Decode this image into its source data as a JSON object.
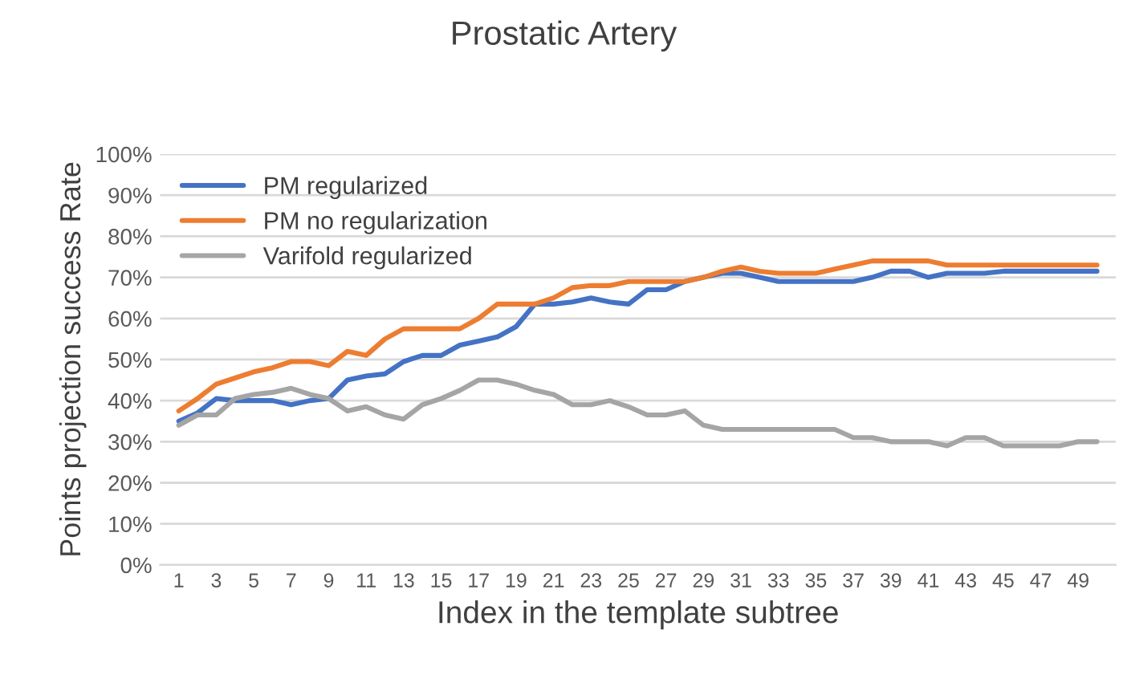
{
  "chart_data": {
    "type": "line",
    "title": "Prostatic Artery",
    "xlabel": "Index in the template subtree",
    "ylabel": "Points projection success Rate",
    "categories": [
      "1",
      null,
      "3",
      null,
      "5",
      null,
      "7",
      null,
      "9",
      null,
      "11",
      null,
      "13",
      null,
      "15",
      null,
      "17",
      null,
      "19",
      null,
      "21",
      null,
      "23",
      null,
      "25",
      null,
      "27",
      null,
      "29",
      null,
      "31",
      null,
      "33",
      null,
      "35",
      null,
      "37",
      null,
      "39",
      null,
      "41",
      null,
      "43",
      null,
      "45",
      null,
      "47",
      null,
      "49",
      null
    ],
    "series": [
      {
        "name": "PM regularized",
        "color": "#4472c4",
        "values": [
          35,
          37,
          40.5,
          40,
          40,
          40,
          39,
          40,
          40.5,
          45,
          46,
          46.5,
          49.5,
          51,
          51,
          53.5,
          54.5,
          55.5,
          58,
          63.5,
          63.5,
          64,
          65,
          64,
          63.5,
          67,
          67,
          69,
          70,
          71,
          71,
          70,
          69,
          69,
          69,
          69,
          69,
          70,
          71.5,
          71.5,
          70,
          71,
          71,
          71,
          71.5,
          71.5,
          71.5,
          71.5,
          71.5,
          71.5
        ]
      },
      {
        "name": "PM no regularization",
        "color": "#ed7d31",
        "values": [
          37.5,
          40.5,
          44,
          45.5,
          47,
          48,
          49.5,
          49.5,
          48.5,
          52,
          51,
          55,
          57.5,
          57.5,
          57.5,
          57.5,
          60,
          63.5,
          63.5,
          63.5,
          65,
          67.5,
          68,
          68,
          69,
          69,
          69,
          69,
          70,
          71.5,
          72.5,
          71.5,
          71,
          71,
          71,
          72,
          73,
          74,
          74,
          74,
          74,
          73,
          73,
          73,
          73,
          73,
          73,
          73,
          73,
          73
        ]
      },
      {
        "name": "Varifold regularized",
        "color": "#a5a5a5",
        "values": [
          34,
          36.5,
          36.5,
          40.5,
          41.5,
          42,
          43,
          41.5,
          40.5,
          37.5,
          38.5,
          36.5,
          35.5,
          39,
          40.5,
          42.5,
          45,
          45,
          44,
          42.5,
          41.5,
          39,
          39,
          40,
          38.5,
          36.5,
          36.5,
          37.5,
          34,
          33,
          33,
          33,
          33,
          33,
          33,
          33,
          31,
          31,
          30,
          30,
          30,
          29,
          31,
          31,
          29,
          29,
          29,
          29,
          30,
          30
        ]
      }
    ],
    "ylim": [
      0,
      100
    ],
    "yticks": [
      {
        "value": 0,
        "label": "0%"
      },
      {
        "value": 10,
        "label": "10%"
      },
      {
        "value": 20,
        "label": "20%"
      },
      {
        "value": 30,
        "label": "30%"
      },
      {
        "value": 40,
        "label": "40%"
      },
      {
        "value": 50,
        "label": "50%"
      },
      {
        "value": 60,
        "label": "60%"
      },
      {
        "value": 70,
        "label": "70%"
      },
      {
        "value": 80,
        "label": "80%"
      },
      {
        "value": 90,
        "label": "90%"
      },
      {
        "value": 100,
        "label": "100%"
      }
    ],
    "grid": "y",
    "legend": "top left"
  }
}
